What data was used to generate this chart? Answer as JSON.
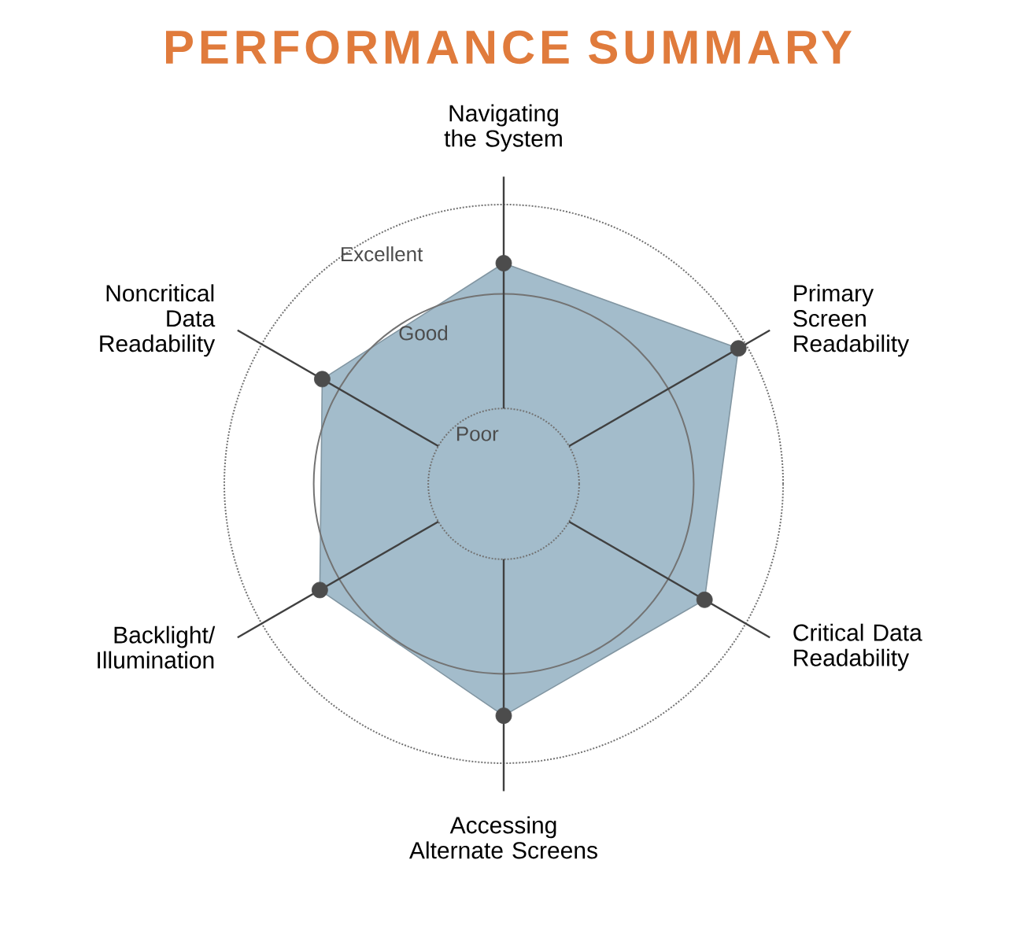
{
  "chart_data": {
    "type": "radar",
    "title": "PERFORMANCE SUMMARY",
    "categories": [
      "Navigating the System",
      "Primary Screen Readability",
      "Critical Data Readability",
      "Accessing Alternate Screens",
      "Backlight/ Illumination",
      "Noncritical Data Readability"
    ],
    "series": [
      {
        "color": "#a3bccb",
        "values": [
          0.79,
          0.97,
          0.83,
          0.83,
          0.76,
          0.75
        ]
      }
    ],
    "ylim": [
      0,
      1
    ],
    "yticks": [
      {
        "value": 0.27,
        "label": "Poor"
      },
      {
        "value": 0.68,
        "label": "Good"
      },
      {
        "value": 1,
        "label": "Excellent"
      }
    ],
    "grid": true,
    "marker": "circle"
  }
}
